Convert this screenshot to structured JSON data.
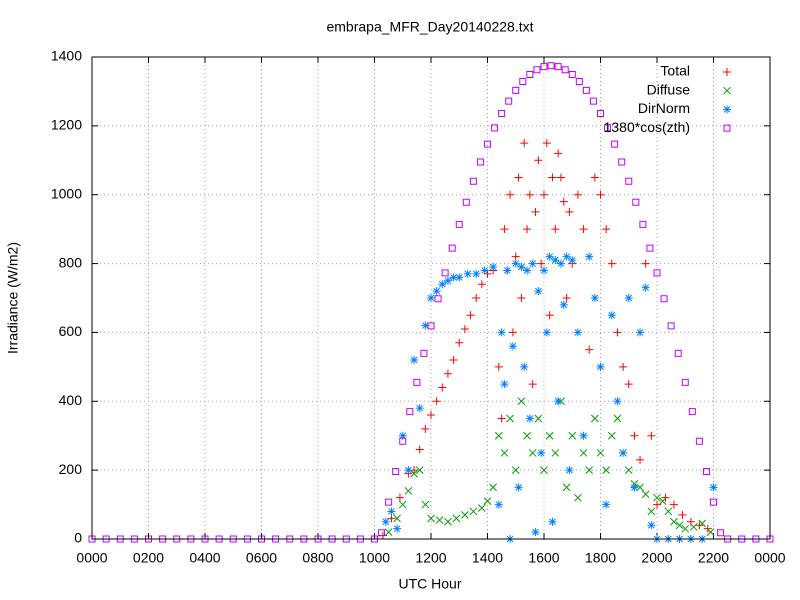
{
  "chart_data": {
    "type": "scatter",
    "title": "embrapa_MFR_Day20140228.txt",
    "x_label": "UTC Hour",
    "y_label": "Irradiance (W/m2)",
    "xlim": [
      0,
      24
    ],
    "ylim": [
      0,
      1400
    ],
    "xticks": [
      {
        "value": 0,
        "label": "0000"
      },
      {
        "value": 2,
        "label": "0200"
      },
      {
        "value": 4,
        "label": "0400"
      },
      {
        "value": 6,
        "label": "0600"
      },
      {
        "value": 8,
        "label": "0800"
      },
      {
        "value": 10,
        "label": "1000"
      },
      {
        "value": 12,
        "label": "1200"
      },
      {
        "value": 14,
        "label": "1400"
      },
      {
        "value": 16,
        "label": "1600"
      },
      {
        "value": 18,
        "label": "1800"
      },
      {
        "value": 20,
        "label": "2000"
      },
      {
        "value": 22,
        "label": "2200"
      },
      {
        "value": 24,
        "label": "0000"
      }
    ],
    "yticks": [
      0,
      200,
      400,
      600,
      800,
      1000,
      1200,
      1400
    ],
    "grid": true,
    "legend": "top-right",
    "series": [
      {
        "name": "Total",
        "color": "#ff0000",
        "marker": "plus",
        "x": [
          10.3,
          10.6,
          10.9,
          11.2,
          11.4,
          11.6,
          11.8,
          12.0,
          12.2,
          12.4,
          12.6,
          12.8,
          13.0,
          13.2,
          13.4,
          13.6,
          13.8,
          14.0,
          14.2,
          14.4,
          14.5,
          14.6,
          14.7,
          14.8,
          14.9,
          15.0,
          15.1,
          15.2,
          15.3,
          15.4,
          15.5,
          15.6,
          15.7,
          15.8,
          15.9,
          16.0,
          16.1,
          16.2,
          16.3,
          16.4,
          16.5,
          16.6,
          16.7,
          16.8,
          16.9,
          17.0,
          17.2,
          17.4,
          17.6,
          17.8,
          18.0,
          18.2,
          18.4,
          18.6,
          18.8,
          19.0,
          19.2,
          19.4,
          19.6,
          19.8,
          20.0,
          20.3,
          20.6,
          20.9,
          21.2,
          21.5,
          21.8
        ],
        "values": [
          10,
          60,
          120,
          190,
          200,
          260,
          320,
          360,
          400,
          440,
          480,
          520,
          570,
          610,
          650,
          700,
          740,
          770,
          780,
          500,
          350,
          900,
          780,
          1000,
          600,
          820,
          1050,
          700,
          1150,
          900,
          1000,
          450,
          950,
          1100,
          800,
          1000,
          1150,
          650,
          1050,
          900,
          1120,
          1050,
          980,
          700,
          950,
          800,
          1000,
          900,
          550,
          1050,
          1000,
          900,
          800,
          600,
          500,
          450,
          300,
          230,
          800,
          300,
          100,
          120,
          100,
          70,
          50,
          40,
          30
        ]
      },
      {
        "name": "Diffuse",
        "color": "#00a000",
        "marker": "cross",
        "x": [
          10.5,
          10.8,
          11.0,
          11.2,
          11.4,
          11.6,
          11.8,
          12.0,
          12.3,
          12.6,
          12.9,
          13.2,
          13.5,
          13.8,
          14.0,
          14.2,
          14.4,
          14.6,
          14.8,
          15.0,
          15.2,
          15.4,
          15.6,
          15.8,
          16.0,
          16.2,
          16.4,
          16.6,
          16.8,
          17.0,
          17.2,
          17.4,
          17.6,
          17.8,
          18.0,
          18.2,
          18.4,
          18.6,
          18.8,
          19.0,
          19.2,
          19.4,
          19.6,
          19.8,
          20.0,
          20.2,
          20.4,
          20.6,
          20.8,
          21.0,
          21.3,
          21.6,
          21.9
        ],
        "values": [
          20,
          60,
          100,
          140,
          190,
          200,
          100,
          60,
          55,
          50,
          60,
          70,
          80,
          90,
          110,
          150,
          300,
          250,
          350,
          200,
          400,
          300,
          250,
          350,
          200,
          300,
          250,
          400,
          150,
          300,
          120,
          250,
          200,
          350,
          250,
          200,
          300,
          350,
          250,
          200,
          160,
          150,
          130,
          80,
          120,
          110,
          80,
          50,
          40,
          30,
          35,
          45,
          20
        ]
      },
      {
        "name": "DirNorm",
        "color": "#0080ff",
        "marker": "star",
        "x": [
          10.4,
          10.6,
          10.8,
          11.0,
          11.2,
          11.4,
          11.6,
          11.8,
          12.0,
          12.2,
          12.4,
          12.6,
          12.8,
          13.0,
          13.3,
          13.6,
          13.9,
          14.2,
          14.4,
          14.5,
          14.6,
          14.7,
          14.8,
          14.9,
          15.0,
          15.1,
          15.2,
          15.3,
          15.4,
          15.5,
          15.6,
          15.7,
          15.8,
          15.9,
          16.0,
          16.1,
          16.2,
          16.3,
          16.4,
          16.5,
          16.6,
          16.7,
          16.8,
          16.9,
          17.0,
          17.2,
          17.4,
          17.6,
          17.8,
          18.0,
          18.2,
          18.4,
          18.6,
          18.8,
          19.0,
          19.2,
          19.4,
          19.6,
          19.8,
          20.0,
          20.4,
          20.8,
          21.2,
          21.6,
          22.0
        ],
        "values": [
          50,
          80,
          30,
          300,
          200,
          520,
          380,
          620,
          700,
          720,
          740,
          750,
          760,
          760,
          770,
          770,
          780,
          790,
          100,
          600,
          450,
          780,
          0,
          560,
          800,
          150,
          790,
          500,
          780,
          350,
          800,
          20,
          720,
          250,
          780,
          600,
          820,
          50,
          810,
          400,
          800,
          680,
          820,
          200,
          810,
          600,
          300,
          820,
          700,
          500,
          100,
          650,
          400,
          250,
          700,
          150,
          600,
          730,
          40,
          0,
          0,
          0,
          0,
          0,
          150
        ]
      },
      {
        "name": "1380*cos(zth)",
        "color": "#c000ff",
        "marker": "square",
        "x": [
          0,
          0.5,
          1,
          1.5,
          2,
          2.5,
          3,
          3.5,
          4,
          4.5,
          5,
          5.5,
          6,
          6.5,
          7,
          7.5,
          8,
          8.5,
          9,
          9.5,
          10,
          10.25,
          10.5,
          10.75,
          11,
          11.25,
          11.5,
          11.75,
          12,
          12.25,
          12.5,
          12.75,
          13,
          13.25,
          13.5,
          13.75,
          14,
          14.25,
          14.5,
          14.75,
          15,
          15.25,
          15.5,
          15.75,
          16,
          16.25,
          16.5,
          16.75,
          17,
          17.25,
          17.5,
          17.75,
          18,
          18.25,
          18.5,
          18.75,
          19,
          19.25,
          19.5,
          19.75,
          20,
          20.25,
          20.5,
          20.75,
          21,
          21.25,
          21.5,
          21.75,
          22,
          22.25,
          22.5,
          23,
          23.5,
          24
        ],
        "values": [
          0,
          0,
          0,
          0,
          0,
          0,
          0,
          0,
          0,
          0,
          0,
          0,
          0,
          0,
          0,
          0,
          0,
          0,
          0,
          0,
          0,
          18,
          107,
          196,
          284,
          370,
          455,
          539,
          619,
          698,
          773,
          845,
          914,
          978,
          1039,
          1095,
          1147,
          1194,
          1236,
          1272,
          1303,
          1329,
          1349,
          1363,
          1372,
          1375,
          1372,
          1363,
          1349,
          1329,
          1303,
          1272,
          1236,
          1194,
          1147,
          1095,
          1039,
          978,
          914,
          845,
          773,
          698,
          619,
          539,
          455,
          370,
          284,
          196,
          107,
          18,
          0,
          0,
          0,
          0
        ]
      }
    ]
  }
}
